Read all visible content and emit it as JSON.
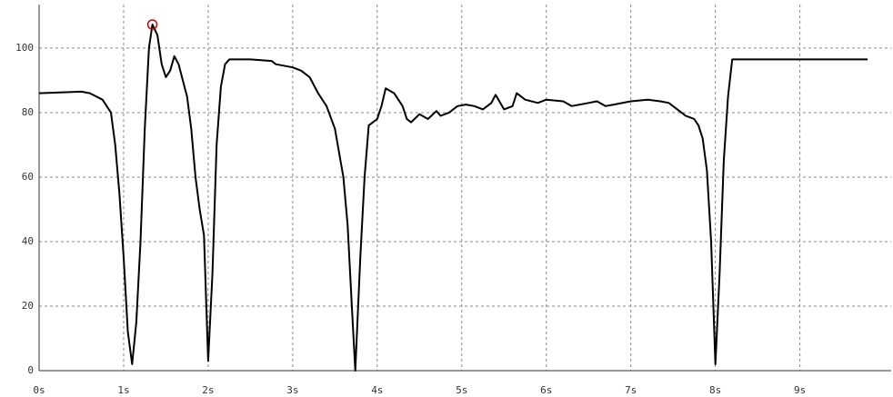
{
  "chart_data": {
    "type": "line",
    "xlim": [
      0,
      10.08
    ],
    "ylim": [
      0,
      113.5
    ],
    "xticks": [
      {
        "value": 0,
        "label": "0s"
      },
      {
        "value": 1,
        "label": "1s"
      },
      {
        "value": 2,
        "label": "2s"
      },
      {
        "value": 3,
        "label": "3s"
      },
      {
        "value": 4,
        "label": "4s"
      },
      {
        "value": 5,
        "label": "5s"
      },
      {
        "value": 6,
        "label": "6s"
      },
      {
        "value": 7,
        "label": "7s"
      },
      {
        "value": 8,
        "label": "8s"
      },
      {
        "value": 9,
        "label": "9s"
      }
    ],
    "yticks": [
      0,
      20,
      40,
      60,
      80,
      100
    ],
    "grid": true,
    "series": [
      {
        "color": "#000000",
        "x": [
          0,
          0.5,
          0.6,
          0.75,
          0.85,
          0.9,
          0.95,
          1.0,
          1.05,
          1.1,
          1.15,
          1.2,
          1.25,
          1.3,
          1.34,
          1.4,
          1.45,
          1.5,
          1.55,
          1.6,
          1.65,
          1.7,
          1.75,
          1.8,
          1.85,
          1.9,
          1.95,
          2.0,
          2.05,
          2.1,
          2.15,
          2.2,
          2.25,
          2.5,
          2.75,
          2.8,
          3.0,
          3.1,
          3.2,
          3.3,
          3.4,
          3.5,
          3.6,
          3.65,
          3.7,
          3.74,
          3.8,
          3.85,
          3.9,
          4.0,
          4.05,
          4.1,
          4.2,
          4.3,
          4.35,
          4.4,
          4.5,
          4.6,
          4.7,
          4.75,
          4.85,
          4.95,
          5.05,
          5.15,
          5.25,
          5.35,
          5.4,
          5.5,
          5.6,
          5.65,
          5.75,
          5.9,
          6.0,
          6.2,
          6.3,
          6.5,
          6.6,
          6.7,
          6.8,
          7.0,
          7.2,
          7.35,
          7.45,
          7.55,
          7.65,
          7.75,
          7.8,
          7.85,
          7.9,
          7.95,
          8.0,
          8.05,
          8.1,
          8.15,
          8.2,
          8.5,
          9.0,
          9.5,
          9.8
        ],
        "values": [
          86,
          86.5,
          86,
          84,
          80,
          70,
          55,
          35,
          12,
          2,
          15,
          40,
          75,
          100,
          107.3,
          104,
          95,
          91,
          93,
          97.5,
          95,
          90,
          85,
          75,
          60,
          50,
          42,
          3,
          30,
          70,
          88,
          95,
          96.5,
          96.5,
          96,
          95,
          94,
          93,
          91,
          86,
          82,
          75,
          60,
          45,
          20,
          0,
          35,
          60,
          76,
          78,
          82,
          87.5,
          86,
          82,
          78,
          77,
          79.5,
          78,
          80.5,
          79,
          80,
          82,
          82.5,
          82,
          81,
          83,
          85.5,
          81,
          82,
          86,
          84,
          83,
          84,
          83.5,
          82,
          83,
          83.5,
          82,
          82.5,
          83.5,
          84,
          83.5,
          83,
          81,
          79,
          78,
          76,
          72,
          62,
          40,
          2,
          30,
          65,
          85,
          96.5,
          96.5,
          96.5,
          96.5,
          96.5
        ]
      }
    ],
    "marker": {
      "x": 1.34,
      "y": 107.3,
      "color": "#c00000"
    }
  }
}
